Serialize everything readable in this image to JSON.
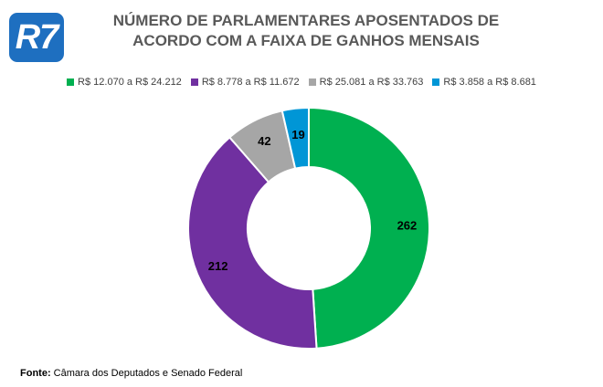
{
  "logo": {
    "text": "R7"
  },
  "chart_data": {
    "type": "pie",
    "title_lines": [
      "NÚMERO DE PARLAMENTARES APOSENTADOS DE",
      "ACORDO COM A FAIXA DE GANHOS MENSAIS"
    ],
    "donut": true,
    "legend_position": "top",
    "slices": [
      {
        "label": "R$ 12.070 a R$ 24.212",
        "value": 262,
        "color": "#00b050"
      },
      {
        "label": "R$ 8.778 a R$ 11.672",
        "value": 212,
        "color": "#7030a0"
      },
      {
        "label": "R$ 25.081 a R$ 33.763",
        "value": 42,
        "color": "#a6a6a6"
      },
      {
        "label": "R$ 3.858 a R$ 8.681",
        "value": 19,
        "color": "#0096d6"
      }
    ]
  },
  "source": {
    "label": "Fonte:",
    "text": "Câmara dos Deputados e Senado Federal"
  }
}
